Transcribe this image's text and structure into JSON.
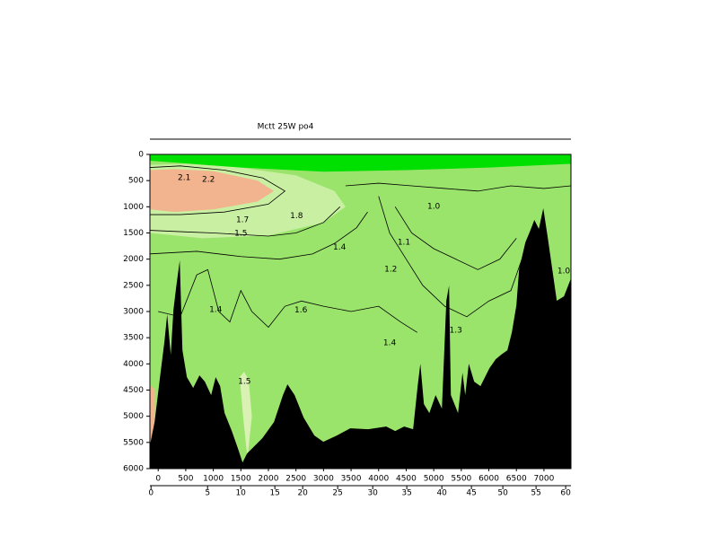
{
  "chart_data": {
    "type": "section",
    "title": "Mctt 25W po4",
    "xlim": [
      -150,
      7490
    ],
    "xticks": [
      0,
      500,
      1000,
      1500,
      2000,
      2500,
      3000,
      3500,
      4000,
      4500,
      5000,
      5500,
      6000,
      6500,
      7000
    ],
    "ylim": [
      0,
      6000
    ],
    "y_inverted": true,
    "yticks": [
      0,
      500,
      1000,
      1500,
      2000,
      2500,
      3000,
      3500,
      4000,
      4500,
      5000,
      5500,
      6000
    ],
    "x2_axis": {
      "labels": [
        0,
        5,
        10,
        15,
        20,
        25,
        30,
        35,
        40,
        45,
        50,
        55,
        60
      ],
      "distance": [
        -130,
        896,
        1498,
        2117,
        2622,
        3257,
        3893,
        4511,
        5147,
        5684,
        6254,
        6857,
        7394
      ]
    },
    "background": "#9be46c",
    "regions": [
      {
        "color": "#c9f0a2",
        "x": [
          -150,
          500,
          1500,
          2500,
          3200,
          3400,
          3000,
          2000,
          800,
          -150
        ],
        "y": [
          200,
          180,
          250,
          400,
          700,
          1000,
          1300,
          1550,
          1600,
          1500
        ]
      },
      {
        "color": "#f2b48e",
        "x": [
          -150,
          300,
          1000,
          1800,
          2100,
          1800,
          1000,
          300,
          -150
        ],
        "y": [
          300,
          280,
          320,
          500,
          700,
          900,
          1050,
          1100,
          1050
        ]
      },
      {
        "color": "#f2b48e",
        "x": [
          -150,
          -60,
          -60,
          -150
        ],
        "y": [
          4400,
          4500,
          5500,
          5500
        ]
      },
      {
        "color": "#d9f2b4",
        "x": [
          1480,
          1560,
          1640,
          1700,
          1620,
          1540
        ],
        "y": [
          4250,
          4150,
          4300,
          5000,
          5800,
          5000
        ]
      },
      {
        "color": "#00e000",
        "x": [
          -150,
          7490,
          7490,
          6000,
          4500,
          3000,
          1500,
          -150
        ],
        "y": [
          0,
          0,
          180,
          250,
          300,
          330,
          250,
          120
        ]
      }
    ],
    "contours": [
      {
        "x": [
          -150,
          400,
          1200,
          1900,
          2300,
          2000,
          1200,
          400,
          -150
        ],
        "y": [
          250,
          220,
          300,
          450,
          700,
          950,
          1100,
          1150,
          1150
        ]
      },
      {
        "x": [
          -150,
          500,
          1000,
          1500,
          2000,
          2500,
          3000,
          3300
        ],
        "y": [
          1450,
          1480,
          1500,
          1530,
          1560,
          1500,
          1300,
          1000
        ]
      },
      {
        "x": [
          -150,
          700,
          1500,
          2200,
          2800,
          3200,
          3600,
          3800
        ],
        "y": [
          1900,
          1850,
          1950,
          2000,
          1900,
          1700,
          1400,
          1100
        ]
      },
      {
        "x": [
          0,
          400,
          700,
          900,
          1100,
          1300,
          1500,
          1700,
          2000,
          2300,
          2600,
          3000,
          3500,
          4000,
          4400,
          4700
        ],
        "y": [
          3000,
          3100,
          2300,
          2200,
          3000,
          3200,
          2600,
          3000,
          3300,
          2900,
          2800,
          2900,
          3000,
          2900,
          3200,
          3400
        ]
      },
      {
        "x": [
          4000,
          4200,
          4500,
          4800,
          5200,
          5600,
          6000,
          6400,
          6600
        ],
        "y": [
          800,
          1500,
          2000,
          2500,
          2900,
          3100,
          2800,
          2600,
          2000
        ]
      },
      {
        "x": [
          3400,
          4000,
          4600,
          5200,
          5800,
          6400,
          7000,
          7490
        ],
        "y": [
          600,
          550,
          600,
          650,
          700,
          600,
          650,
          600
        ]
      },
      {
        "x": [
          4300,
          4600,
          5000,
          5400,
          5800,
          6200,
          6500
        ],
        "y": [
          1000,
          1500,
          1800,
          2000,
          2200,
          2000,
          1600
        ]
      }
    ],
    "contour_labels": [
      {
        "value": 2.2,
        "x": 912,
        "y": 480
      },
      {
        "value": 2.1,
        "x": 472,
        "y": 446
      },
      {
        "value": 1.7,
        "x": 1530,
        "y": 1250
      },
      {
        "value": 1.8,
        "x": 2510,
        "y": 1170
      },
      {
        "value": 1.5,
        "x": 1500,
        "y": 1510
      },
      {
        "value": 1.4,
        "x": 3290,
        "y": 1770
      },
      {
        "value": 1.4,
        "x": 1043,
        "y": 2967
      },
      {
        "value": 1.6,
        "x": 2590,
        "y": 2970
      },
      {
        "value": 1.5,
        "x": 1565,
        "y": 4339
      },
      {
        "value": 1.2,
        "x": 4220,
        "y": 2195
      },
      {
        "value": 1,
        "label": "1.0",
        "x": 5000,
        "y": 995
      },
      {
        "value": 1.1,
        "x": 4460,
        "y": 1680
      },
      {
        "value": 1.3,
        "x": 5400,
        "y": 3360
      },
      {
        "value": 1,
        "label": "1.0",
        "x": 7360,
        "y": 2230
      },
      {
        "value": 1.4,
        "x": 4200,
        "y": 3600
      }
    ],
    "bottom": {
      "color": "#000000",
      "x": [
        -147,
        -65,
        33,
        114,
        163,
        228,
        277,
        326,
        391,
        440,
        521,
        635,
        749,
        847,
        961,
        1043,
        1124,
        1205,
        1336,
        1450,
        1531,
        1613,
        1727,
        1890,
        2101,
        2264,
        2346,
        2476,
        2639,
        2834,
        2997,
        3242,
        3486,
        3812,
        4138,
        4301,
        4463,
        4626,
        4708,
        4757,
        4822,
        4920,
        5034,
        5148,
        5229,
        5278,
        5311,
        5441,
        5522,
        5571,
        5636,
        5734,
        5848,
        6011,
        6125,
        6223,
        6337,
        6418,
        6500,
        6549,
        6663,
        6744,
        6826,
        6907,
        6988,
        7070,
        7151,
        7233,
        7363,
        7490
      ],
      "y": [
        5540,
        5111,
        4253,
        3567,
        3053,
        3824,
        2967,
        2538,
        2024,
        3739,
        4253,
        4459,
        4219,
        4339,
        4596,
        4253,
        4425,
        4939,
        5282,
        5625,
        5882,
        5711,
        5591,
        5419,
        5111,
        4596,
        4390,
        4596,
        5025,
        5368,
        5488,
        5368,
        5231,
        5248,
        5196,
        5282,
        5196,
        5248,
        4425,
        3996,
        4768,
        4939,
        4596,
        4853,
        2795,
        2504,
        4596,
        4939,
        4167,
        4596,
        3996,
        4339,
        4425,
        4082,
        3910,
        3824,
        3739,
        3396,
        2881,
        2195,
        1681,
        1475,
        1252,
        1423,
        1029,
        1595,
        2195,
        2795,
        2710,
        2367
      ]
    }
  }
}
